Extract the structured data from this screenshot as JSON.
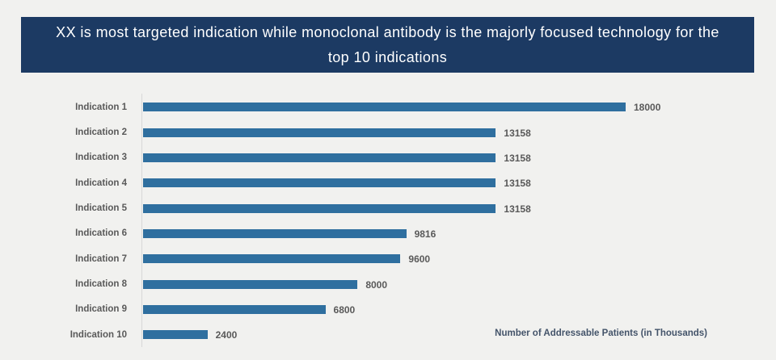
{
  "header": {
    "title": "XX is most targeted indication while monoclonal antibody is the majorly focused technology for the top 10 indications"
  },
  "chart_data": {
    "type": "bar",
    "orientation": "horizontal",
    "categories": [
      "Indication 1",
      "Indication 2",
      "Indication 3",
      "Indication 4",
      "Indication 5",
      "Indication 6",
      "Indication 7",
      "Indication 8",
      "Indication 9",
      "Indication 10"
    ],
    "values": [
      18000,
      13158,
      13158,
      13158,
      13158,
      9816,
      9600,
      8000,
      6800,
      2400
    ],
    "value_axis_title": "Number of Addressable Patients (in Thousands)",
    "xlim": [
      0,
      18000
    ],
    "data_labels": true,
    "grid": false,
    "legend": false
  },
  "colors": {
    "page_bg": "#F1F1EF",
    "banner_bg": "#1C3A63",
    "banner_text": "#FFFFFF",
    "bar": "#2F6F9F",
    "category_text": "#595959",
    "value_text": "#595959",
    "axis_line": "#D8D8D8",
    "axis_title_text": "#44546A"
  }
}
